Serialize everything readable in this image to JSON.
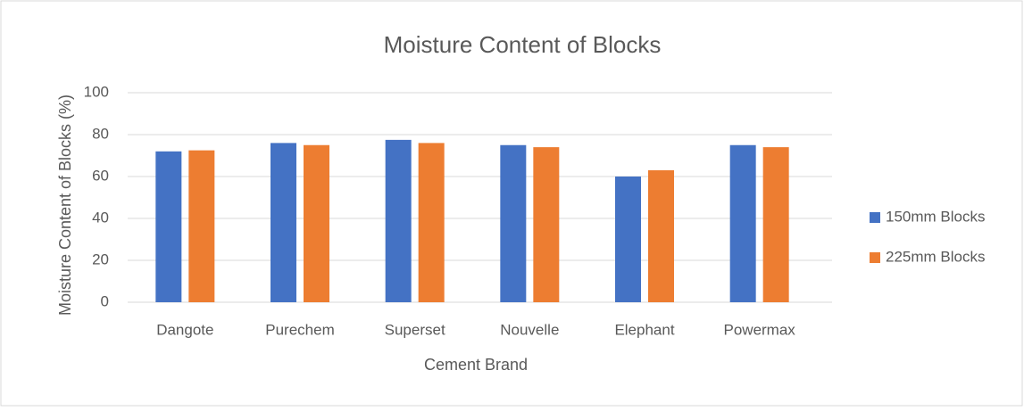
{
  "chart_data": {
    "type": "bar",
    "title": "Moisture Content of Blocks",
    "x_label": "Cement Brand",
    "y_label": "Moisture Content of Blocks (%)",
    "categories": [
      "Dangote",
      "Purechem",
      "Superset",
      "Nouvelle",
      "Elephant",
      "Powermax"
    ],
    "series": [
      {
        "name": "150mm Blocks",
        "color": "#4472c4",
        "values": [
          72,
          76,
          77.5,
          75,
          60,
          75
        ]
      },
      {
        "name": "225mm Blocks",
        "color": "#ed7d31",
        "values": [
          72.5,
          75,
          76,
          74,
          63,
          74
        ]
      }
    ],
    "ylim": [
      0,
      100
    ],
    "yticks": [
      0,
      20,
      40,
      60,
      80,
      100
    ],
    "grid": true,
    "legend": "right"
  }
}
